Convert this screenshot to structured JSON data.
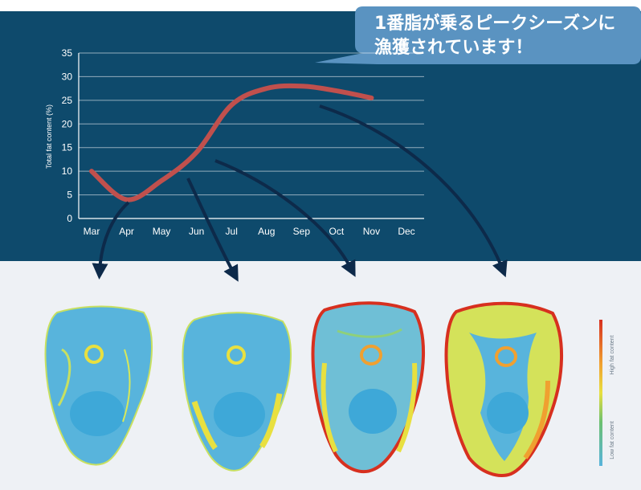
{
  "callout": {
    "line1": "1番脂が乗るピークシーズンに",
    "line2": "漁獲されています！"
  },
  "chart_data": {
    "type": "line",
    "categories": [
      "Mar",
      "Apr",
      "May",
      "Jun",
      "Jul",
      "Aug",
      "Sep",
      "Oct",
      "Nov",
      "Dec"
    ],
    "series": [
      {
        "values": [
          10,
          4,
          8,
          14,
          24,
          27.5,
          28,
          27,
          25.5,
          null
        ]
      }
    ],
    "xlabel": "",
    "ylabel": "Total fat content (%)",
    "ylim": [
      0,
      35
    ],
    "yticks": [
      0,
      5,
      10,
      15,
      20,
      25,
      30,
      35
    ],
    "grid": true
  },
  "legend": {
    "high": "High fat content",
    "low": "Low fat content"
  },
  "colors": {
    "panel": "#0e4a6c",
    "line": "#c0504d",
    "arrow": "#0d2a4a",
    "bubble": "#5a93c1",
    "scan_base": "#58b4dc"
  },
  "scan_months": [
    "Apr",
    "Jun",
    "Jul",
    "Oct"
  ]
}
